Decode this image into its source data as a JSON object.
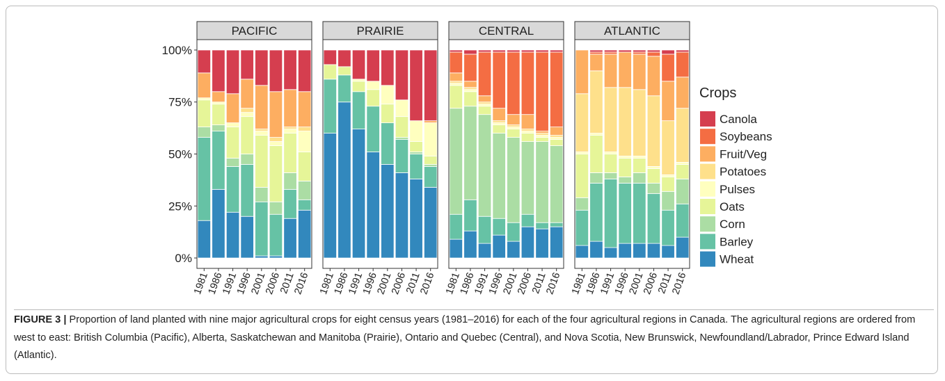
{
  "chart_data": {
    "type": "bar",
    "stacked": true,
    "facets": [
      "PACIFIC",
      "PRAIRIE",
      "CENTRAL",
      "ATLANTIC"
    ],
    "categories": [
      "1981",
      "1986",
      "1991",
      "1996",
      "2001",
      "2006",
      "2011",
      "2016"
    ],
    "ylim": [
      -5,
      105
    ],
    "yticks": [
      {
        "value": 0,
        "label": "0%"
      },
      {
        "value": 25,
        "label": "25%"
      },
      {
        "value": 50,
        "label": "50%"
      },
      {
        "value": 75,
        "label": "75%"
      },
      {
        "value": 100,
        "label": "100%"
      }
    ],
    "legend_title": "Crops",
    "legend": "right",
    "series": [
      {
        "name": "Wheat",
        "color": "#3288bd",
        "values": [
          [
            18,
            33,
            22,
            20,
            1,
            1,
            19,
            23
          ],
          [
            60,
            75,
            62,
            51,
            45,
            41,
            38,
            34
          ],
          [
            9,
            13,
            7,
            11,
            8,
            15,
            14,
            15
          ],
          [
            6,
            8,
            5,
            7,
            7,
            7,
            6,
            10
          ]
        ]
      },
      {
        "name": "Barley",
        "color": "#66c2a5",
        "values": [
          [
            40,
            28,
            22,
            25,
            26,
            20,
            14,
            5
          ],
          [
            26,
            13,
            18,
            22,
            20,
            16,
            12,
            10
          ],
          [
            12,
            15,
            13,
            8,
            9,
            6,
            3,
            2
          ],
          [
            17,
            28,
            33,
            29,
            29,
            24,
            17,
            16
          ]
        ]
      },
      {
        "name": "Corn",
        "color": "#abdda4",
        "values": [
          [
            5,
            3,
            4,
            5,
            7,
            6,
            8,
            9
          ],
          [
            0,
            0,
            0,
            0,
            0,
            1,
            1,
            1
          ],
          [
            51,
            45,
            49,
            41,
            41,
            35,
            39,
            37
          ],
          [
            6,
            5,
            3,
            3,
            5,
            5,
            9,
            12
          ]
        ]
      },
      {
        "name": "Oats",
        "color": "#e6f598",
        "values": [
          [
            13,
            10,
            15,
            18,
            25,
            27,
            19,
            14
          ],
          [
            7,
            4,
            5,
            8,
            9,
            10,
            5,
            4
          ],
          [
            11,
            7,
            4,
            4,
            4,
            4,
            2,
            3
          ],
          [
            21,
            18,
            9,
            9,
            7,
            7,
            7,
            7
          ]
        ]
      },
      {
        "name": "Pulses",
        "color": "#ffffbf",
        "values": [
          [
            1,
            1,
            2,
            2,
            2,
            2,
            2,
            10
          ],
          [
            0,
            0,
            1,
            4,
            9,
            8,
            10,
            16
          ],
          [
            1,
            1,
            1,
            1,
            1,
            1,
            1,
            1
          ],
          [
            1,
            1,
            1,
            1,
            1,
            1,
            1,
            1
          ]
        ]
      },
      {
        "name": "Potatoes",
        "color": "#fee08b",
        "values": [
          [
            0,
            0,
            0,
            2,
            1,
            2,
            1,
            2
          ],
          [
            0,
            0,
            0,
            0,
            0,
            0,
            0,
            0
          ],
          [
            1,
            1,
            1,
            1,
            1,
            1,
            1,
            1
          ],
          [
            28,
            30,
            31,
            33,
            32,
            34,
            26,
            26
          ]
        ]
      },
      {
        "name": "Fruit/Veg",
        "color": "#fdae61",
        "values": [
          [
            12,
            5,
            14,
            14,
            21,
            22,
            18,
            17
          ],
          [
            0,
            0,
            0,
            0,
            0,
            0,
            0,
            1
          ],
          [
            4,
            3,
            3,
            6,
            5,
            7,
            1,
            4
          ],
          [
            21,
            8,
            16,
            17,
            17,
            19,
            19,
            15
          ]
        ]
      },
      {
        "name": "Soybeans",
        "color": "#f46d43",
        "values": [
          [
            0,
            0,
            0,
            0,
            0,
            0,
            0,
            0
          ],
          [
            0,
            0,
            0,
            0,
            0,
            0,
            0,
            0
          ],
          [
            10,
            13,
            21,
            27,
            30,
            30,
            38,
            36
          ],
          [
            0,
            1,
            1,
            0,
            1,
            2,
            13,
            12
          ]
        ]
      },
      {
        "name": "Canola",
        "color": "#d53e4f",
        "values": [
          [
            11,
            20,
            21,
            14,
            17,
            20,
            19,
            20
          ],
          [
            7,
            8,
            14,
            15,
            17,
            24,
            34,
            34
          ],
          [
            1,
            2,
            1,
            1,
            1,
            1,
            1,
            1
          ],
          [
            0,
            1,
            1,
            1,
            1,
            1,
            2,
            1
          ]
        ]
      }
    ],
    "caption": {
      "label": "FIGURE 3 |",
      "text": "Proportion of land planted with nine major agricultural crops for eight census years (1981–2016) for each of the four agricultural regions in Canada. The agricultural regions are ordered from west to east: British Columbia (Pacific), Alberta, Saskatchewan and Manitoba (Prairie), Ontario and Quebec (Central), and Nova Scotia, New Brunswick, Newfoundland/Labrador, Prince Edward Island (Atlantic)."
    }
  }
}
